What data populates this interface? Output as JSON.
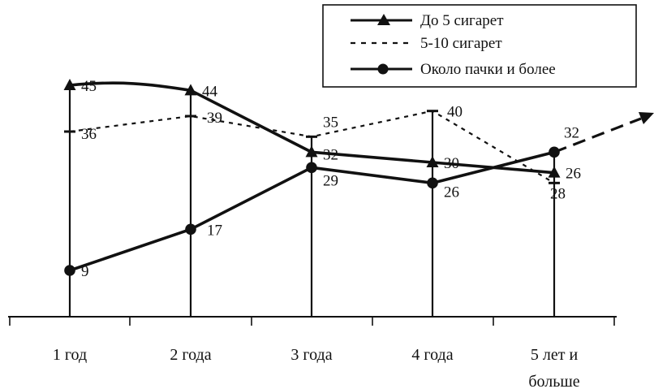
{
  "chart_data": {
    "type": "line",
    "categories": [
      [
        "1 год"
      ],
      [
        "2 года"
      ],
      [
        "3 года"
      ],
      [
        "4 года"
      ],
      [
        "5 лет  и",
        "больше"
      ]
    ],
    "series": [
      {
        "name": "До 5 сигарет",
        "values": [
          45,
          44,
          32,
          30,
          28
        ],
        "style": "solid",
        "marker": "triangle"
      },
      {
        "name": "5-10 сигарет",
        "values": [
          36,
          39,
          35,
          40,
          26
        ],
        "style": "dotted",
        "marker": "dash"
      },
      {
        "name": "Около пачки и более",
        "values": [
          9,
          17,
          29,
          26,
          32
        ],
        "style": "solid",
        "marker": "circle"
      }
    ],
    "ylim": [
      0,
      45
    ],
    "legend": "top-right",
    "grid": false,
    "trend_arrow": true,
    "line_color": "#111111"
  }
}
